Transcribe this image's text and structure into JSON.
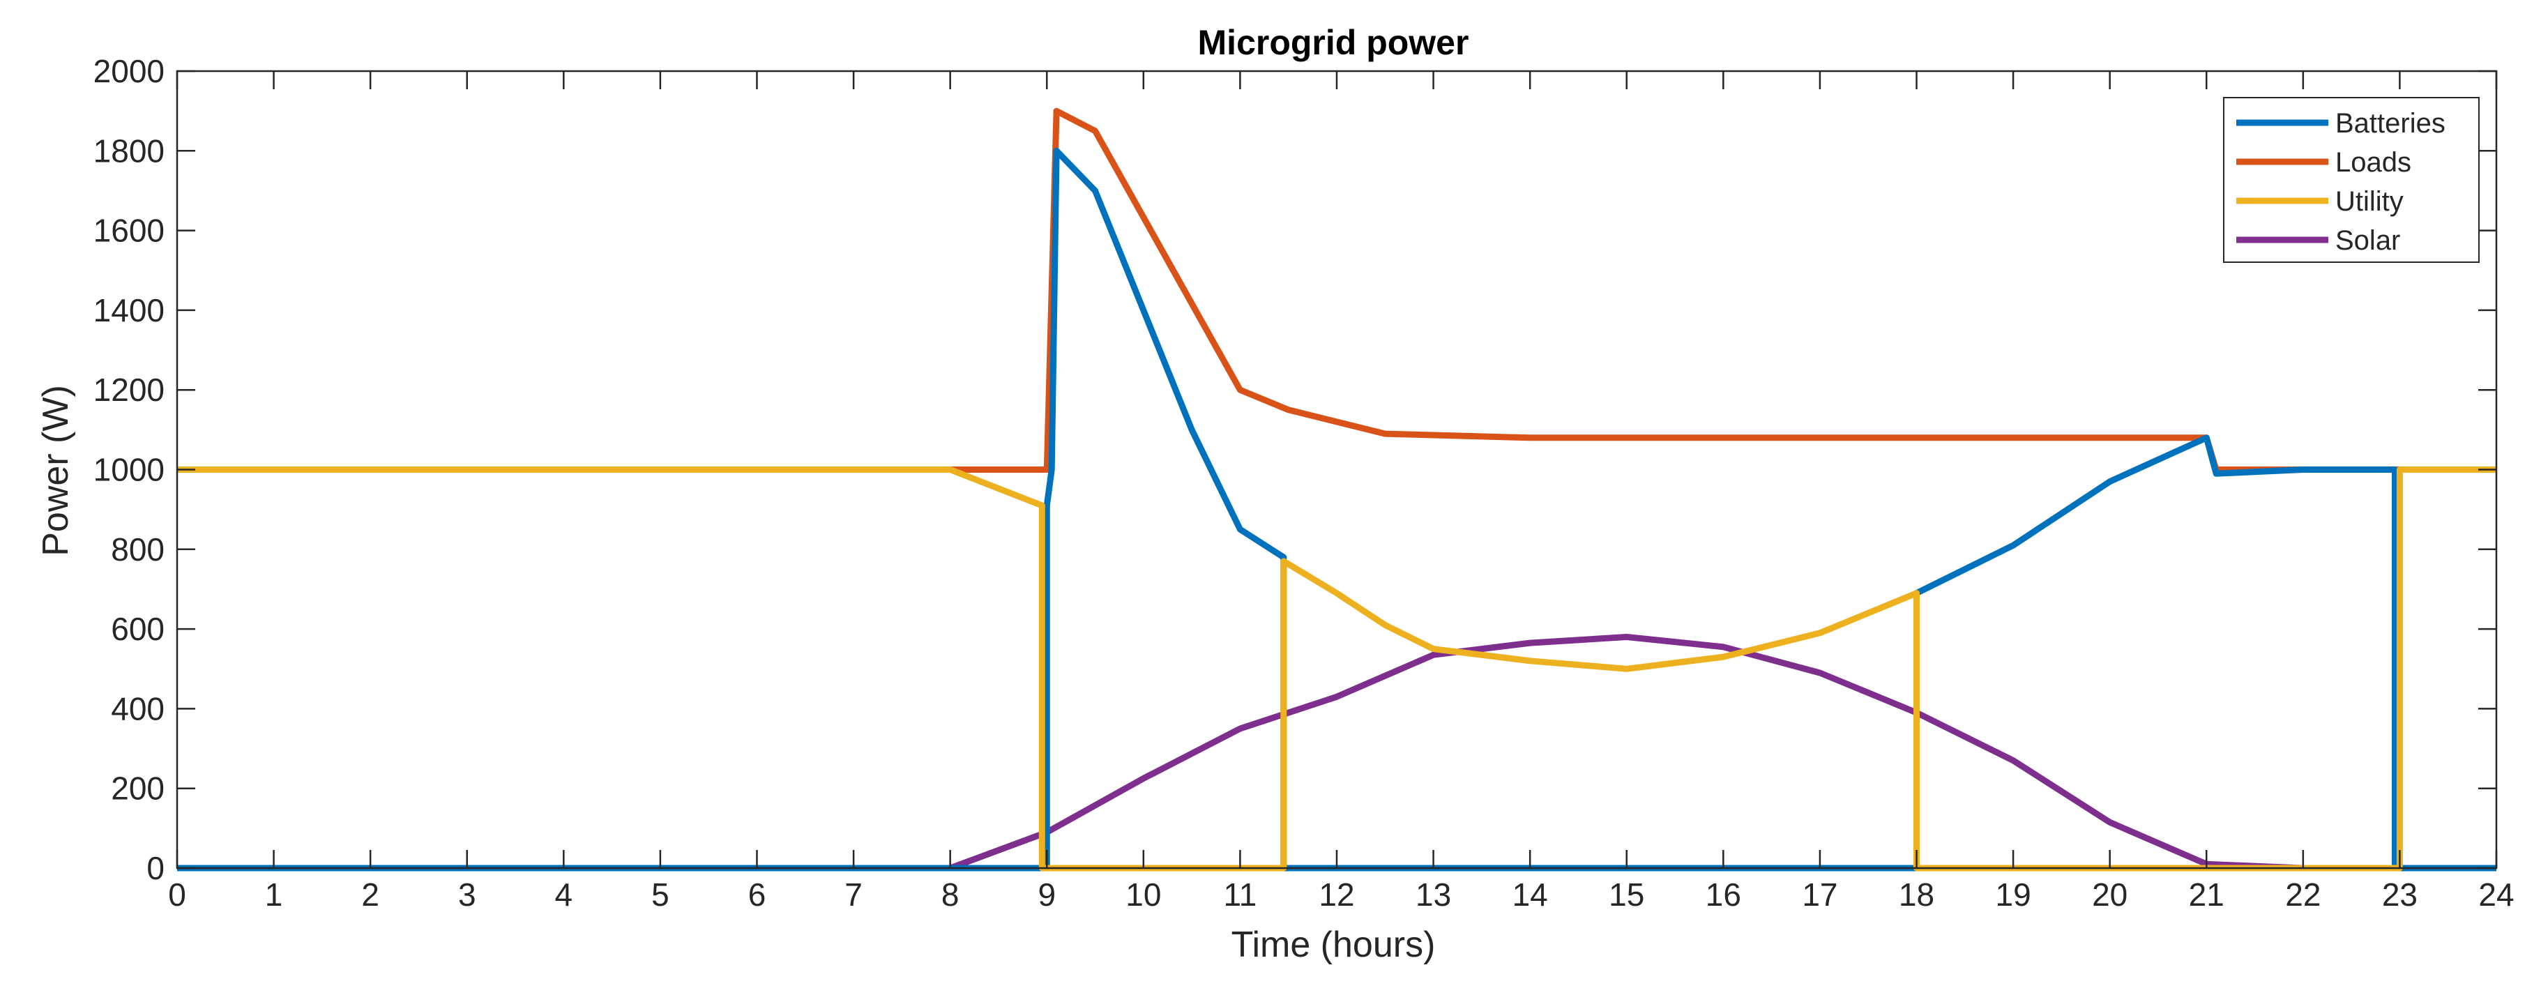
{
  "chart_data": {
    "type": "line",
    "title": "Microgrid power",
    "xlabel": "Time (hours)",
    "ylabel": "Power (W)",
    "xlim": [
      0,
      24
    ],
    "ylim": [
      0,
      2000
    ],
    "xticks": [
      0,
      1,
      2,
      3,
      4,
      5,
      6,
      7,
      8,
      9,
      10,
      11,
      12,
      13,
      14,
      15,
      16,
      17,
      18,
      19,
      20,
      21,
      22,
      23,
      24
    ],
    "yticks": [
      0,
      200,
      400,
      600,
      800,
      1000,
      1200,
      1400,
      1600,
      1800,
      2000
    ],
    "grid": false,
    "legend_position": "top-right",
    "series": [
      {
        "name": "Batteries",
        "color": "#0072BD",
        "x": [
          0,
          8.95,
          8.95,
          9.0,
          9.0,
          9.05,
          9.1,
          9.5,
          10.0,
          10.5,
          11.0,
          11.45,
          11.45,
          18.0,
          18.0,
          19.0,
          20.0,
          21.0,
          21.1,
          22.0,
          22.95,
          22.95,
          24.0
        ],
        "y": [
          0,
          0,
          0,
          0,
          910,
          1000,
          1800,
          1700,
          1400,
          1100,
          850,
          780,
          0,
          0,
          690,
          810,
          970,
          1080,
          990,
          1000,
          1000,
          0,
          0
        ]
      },
      {
        "name": "Loads",
        "color": "#D95319",
        "x": [
          0,
          9.0,
          9.1,
          9.5,
          11.0,
          11.5,
          12.5,
          14.0,
          21.0,
          21.1,
          22.0,
          24.0
        ],
        "y": [
          1000,
          1000,
          1900,
          1850,
          1200,
          1150,
          1090,
          1080,
          1080,
          1000,
          1000,
          1000
        ],
        "note": "drawn beneath other series"
      },
      {
        "name": "Utility",
        "color": "#EDB120",
        "x": [
          0,
          8.0,
          8.95,
          8.95,
          11.45,
          11.45,
          12.0,
          12.5,
          13.0,
          14.0,
          15.0,
          16.0,
          17.0,
          18.0,
          18.0,
          21.0,
          22.95,
          23.0,
          23.0,
          24.0
        ],
        "y": [
          1000,
          1000,
          910,
          0,
          0,
          770,
          690,
          610,
          550,
          520,
          500,
          530,
          590,
          690,
          0,
          0,
          0,
          0,
          1000,
          1000
        ]
      },
      {
        "name": "Solar",
        "color": "#7E2F8E",
        "x": [
          0,
          8.0,
          9.0,
          10.0,
          11.0,
          12.0,
          13.0,
          14.0,
          15.0,
          16.0,
          17.0,
          18.0,
          19.0,
          20.0,
          21.0,
          22.0,
          24.0
        ],
        "y": [
          0,
          0,
          90,
          225,
          350,
          430,
          535,
          565,
          580,
          555,
          490,
          390,
          270,
          115,
          10,
          0,
          0
        ]
      }
    ],
    "draw_order": [
      "Loads",
      "Solar",
      "Batteries",
      "Utility"
    ]
  }
}
